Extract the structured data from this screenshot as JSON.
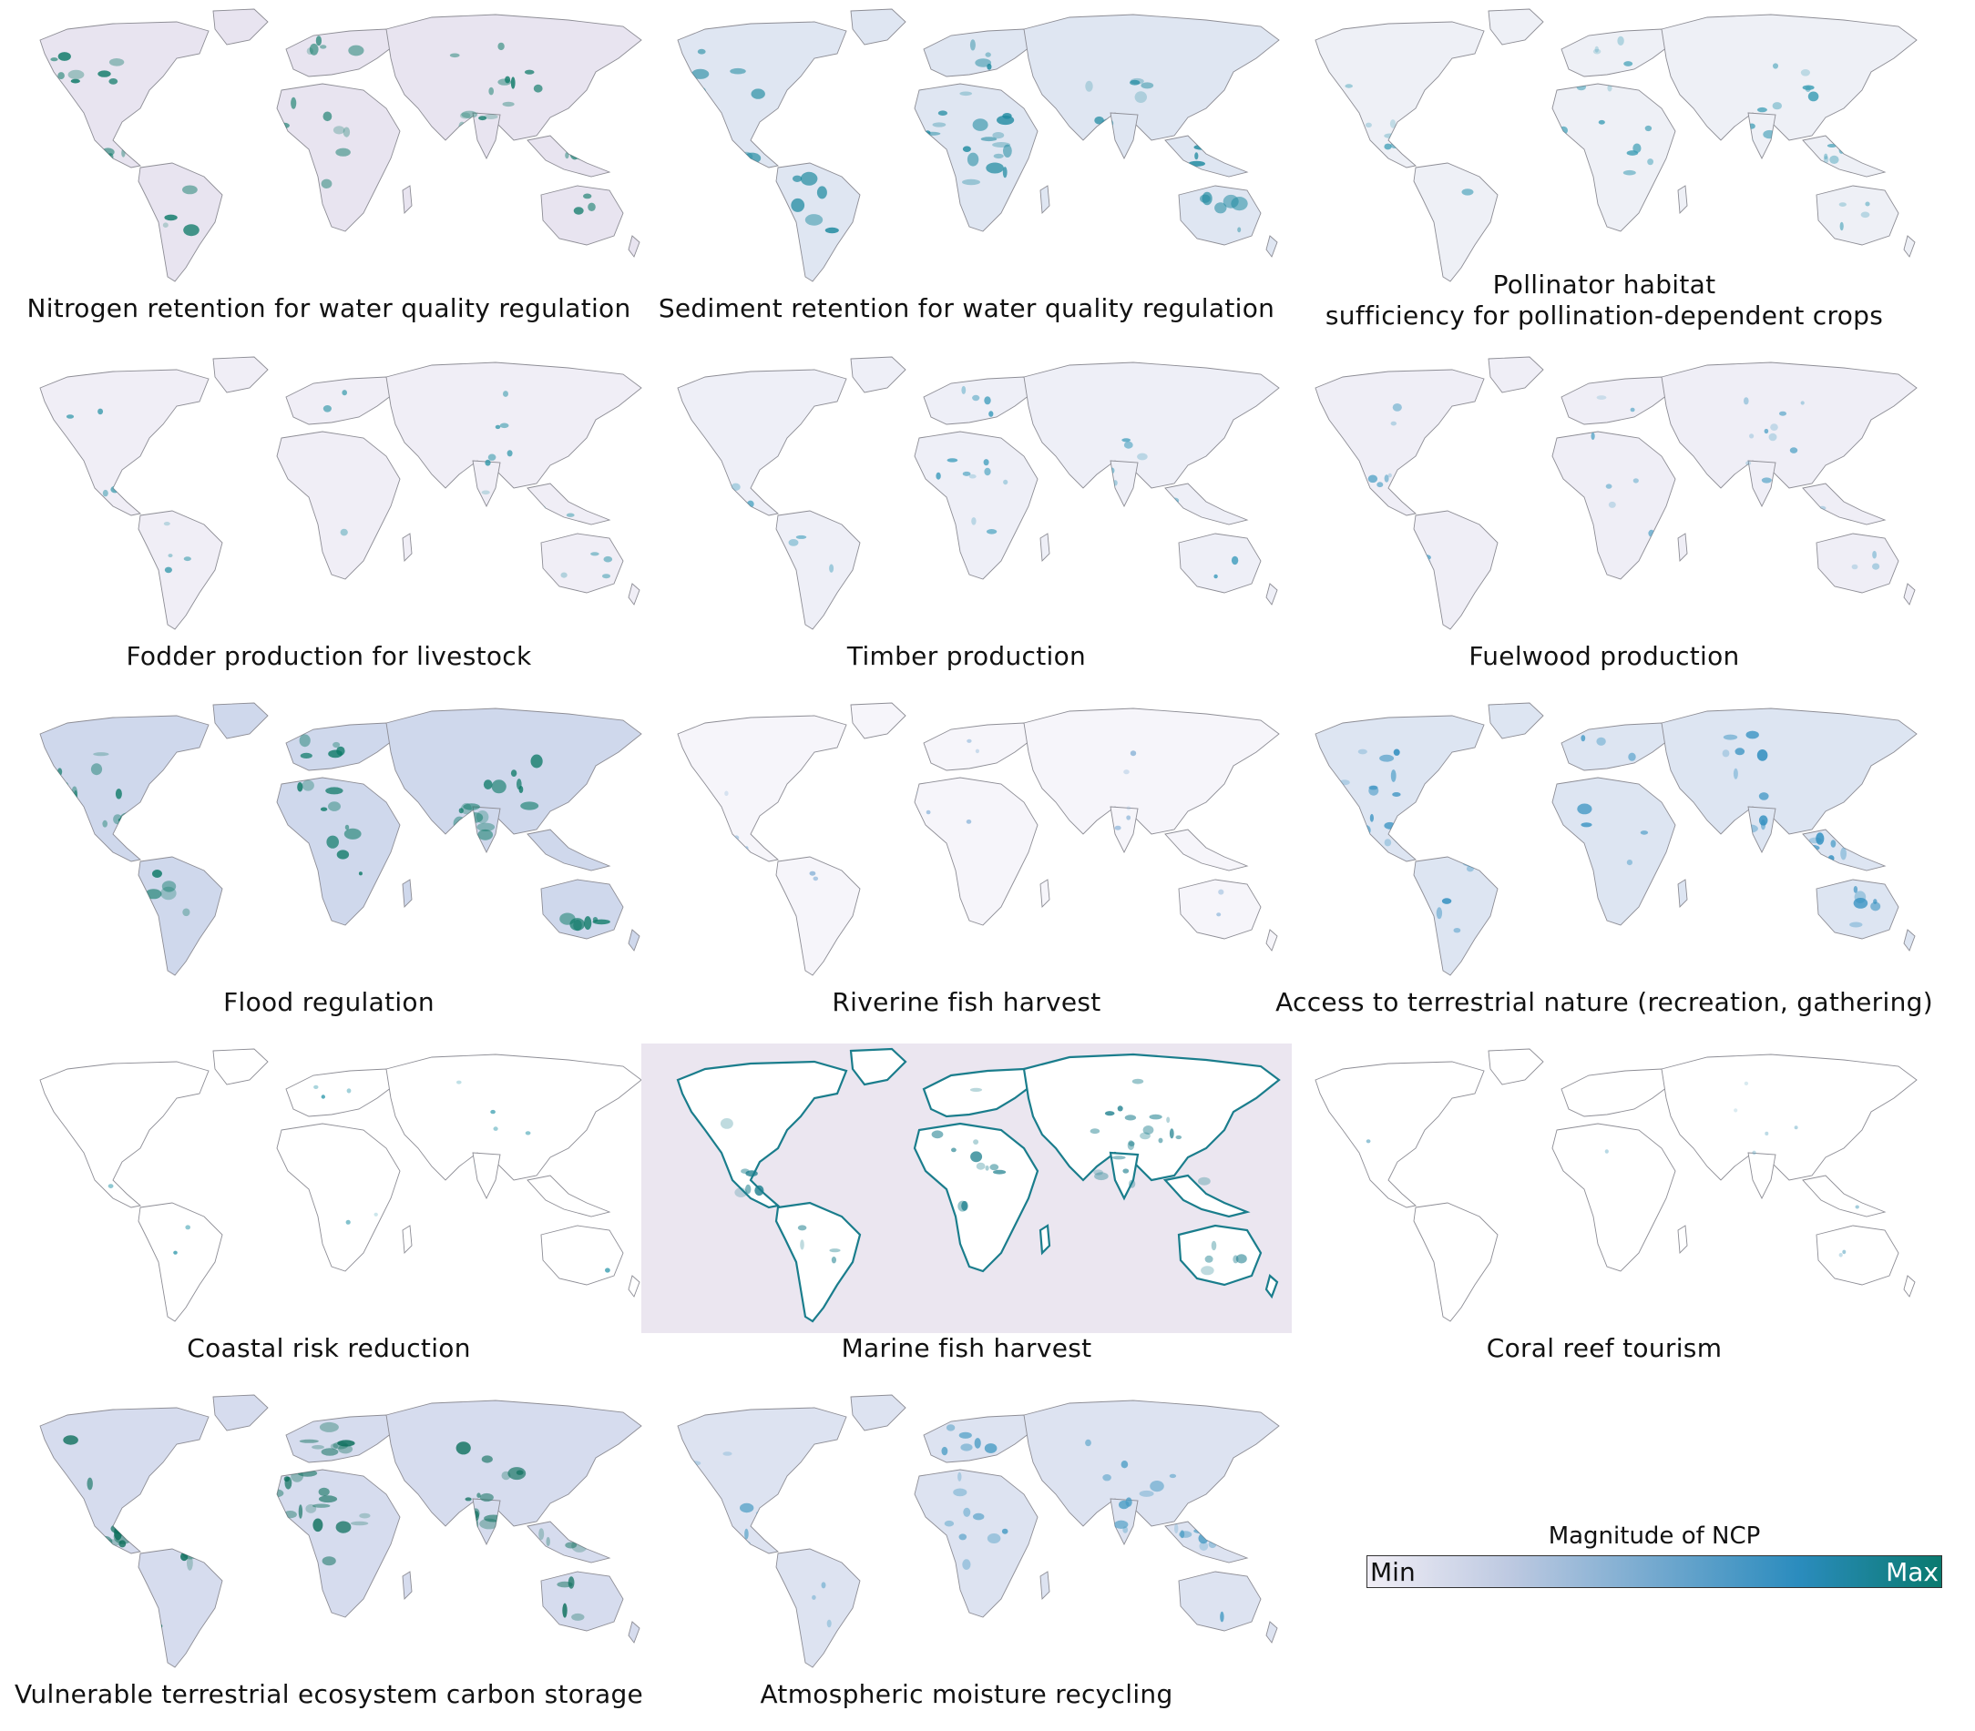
{
  "panels": [
    {
      "label": "Nitrogen retention for water quality regulation",
      "ocean": false,
      "land": "#e8e4f0",
      "hot": "#0e7a68",
      "intensity": 0.7
    },
    {
      "label": "Sediment retention for water quality regulation",
      "ocean": false,
      "land": "#dfe6f2",
      "hot": "#1f8aa0",
      "intensity": 0.8
    },
    {
      "label": "Pollinator habitat\nsufficiency for pollination-dependent crops",
      "ocean": false,
      "land": "#eef0f6",
      "hot": "#3c9db5",
      "intensity": 0.5
    },
    {
      "label": "Fodder production for livestock",
      "ocean": false,
      "land": "#f0eef6",
      "hot": "#2f96a8",
      "intensity": 0.3
    },
    {
      "label": "Timber production",
      "ocean": false,
      "land": "#eeeff7",
      "hot": "#3b9bbb",
      "intensity": 0.4
    },
    {
      "label": "Fuelwood production",
      "ocean": false,
      "land": "#efeef6",
      "hot": "#5aa6c8",
      "intensity": 0.35
    },
    {
      "label": "Flood regulation",
      "ocean": false,
      "land": "#cfd8ec",
      "hot": "#0e7a68",
      "intensity": 0.8
    },
    {
      "label": "Riverine fish harvest",
      "ocean": false,
      "land": "#f6f5fa",
      "hot": "#8ab4d8",
      "intensity": 0.15
    },
    {
      "label": "Access to terrestrial nature (recreation, gathering)",
      "ocean": false,
      "land": "#dde5f2",
      "hot": "#2b8cbe",
      "intensity": 0.7
    },
    {
      "label": "Coastal risk reduction",
      "ocean": false,
      "land": "#ffffff",
      "hot": "#3a9eb0",
      "intensity": 0.1
    },
    {
      "label": "Marine fish harvest",
      "ocean": true,
      "land": "#ffffff",
      "hot": "#1a7d8c",
      "intensity": 0.6
    },
    {
      "label": "Coral reef tourism",
      "ocean": false,
      "land": "#ffffff",
      "hot": "#6fb0c8",
      "intensity": 0.05
    },
    {
      "label": "Vulnerable terrestrial ecosystem carbon storage",
      "ocean": false,
      "land": "#d6dcee",
      "hot": "#0a6e5a",
      "intensity": 0.9
    },
    {
      "label": "Atmospheric moisture recycling",
      "ocean": false,
      "land": "#dde3f1",
      "hot": "#4a9cc4",
      "intensity": 0.6
    }
  ],
  "legend": {
    "title": "Magnitude of NCP",
    "min_label": "Min",
    "max_label": "Max",
    "colors": [
      "#f1eef6",
      "#bdc9e1",
      "#74a9cf",
      "#2b8cbe",
      "#0a7a6f"
    ]
  }
}
